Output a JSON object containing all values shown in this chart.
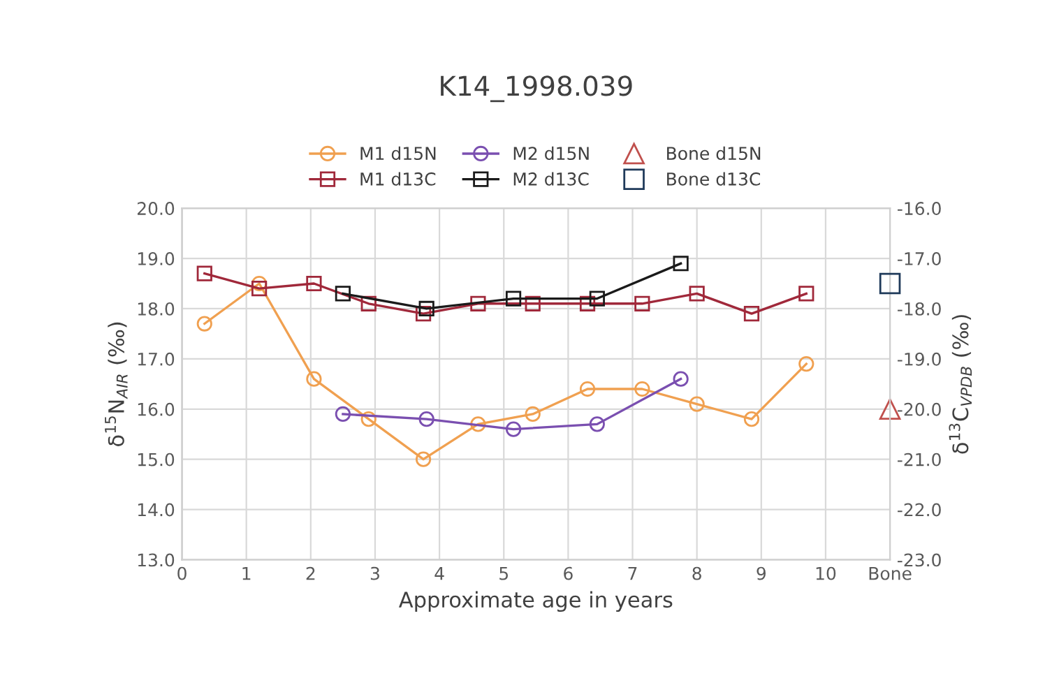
{
  "chart_data": {
    "type": "line",
    "title": "K14_1998.039",
    "xlabel": "Approximate age in years",
    "ylabel": "δ$^{15}$N$_{AIR}$ (‰)",
    "y2label": "δ$^{13}$C$_{VPDB}$ (‰)",
    "xlim": [
      0,
      11
    ],
    "xticks": [
      0,
      1,
      2,
      3,
      4,
      5,
      6,
      7,
      8,
      9,
      10,
      {
        "value": 11,
        "label": "Bone"
      }
    ],
    "ylim": [
      13,
      20
    ],
    "yticks": [
      {
        "value": 13,
        "label": "13.0"
      },
      {
        "value": 14,
        "label": "14.0"
      },
      {
        "value": 15,
        "label": "15.0"
      },
      {
        "value": 16,
        "label": "16.0"
      },
      {
        "value": 17,
        "label": "17.0"
      },
      {
        "value": 18,
        "label": "18.0"
      },
      {
        "value": 19,
        "label": "19.0"
      },
      {
        "value": 20,
        "label": "20.0"
      }
    ],
    "y2lim": [
      -23,
      -16
    ],
    "y2ticks": [
      {
        "value": -23,
        "label": "-23.0"
      },
      {
        "value": -22,
        "label": "-22.0"
      },
      {
        "value": -21,
        "label": "-21.0"
      },
      {
        "value": -20,
        "label": "-20.0"
      },
      {
        "value": -19,
        "label": "-19.0"
      },
      {
        "value": -18,
        "label": "-18.0"
      },
      {
        "value": -17,
        "label": "-17.0"
      },
      {
        "value": -16,
        "label": "-16.0"
      }
    ],
    "grid": true,
    "legend": "top",
    "series": [
      {
        "name": "M1 d15N",
        "marker": "circle",
        "color": "#f0a050",
        "x": [
          0.35,
          1.2,
          2.05,
          2.9,
          3.75,
          4.6,
          5.45,
          6.3,
          7.15,
          8.0,
          8.85,
          9.7
        ],
        "values": [
          17.7,
          18.5,
          16.6,
          15.8,
          15.0,
          15.7,
          15.9,
          16.4,
          16.4,
          16.1,
          15.8,
          16.9
        ]
      },
      {
        "name": "M2 d15N",
        "marker": "circle",
        "color": "#7a4fb0",
        "x": [
          2.5,
          3.8,
          5.15,
          6.45,
          7.75
        ],
        "values": [
          15.9,
          15.8,
          15.6,
          15.7,
          16.6
        ]
      },
      {
        "name": "Bone d15N",
        "type": "scatter",
        "marker": "triangle",
        "color": "#c0504d",
        "x": [
          11
        ],
        "values": [
          16.0
        ]
      },
      {
        "name": "M1 d13C",
        "marker": "square",
        "axis": "y2",
        "color": "#a0283a",
        "x": [
          0.35,
          1.2,
          2.05,
          2.9,
          3.75,
          4.6,
          5.45,
          6.3,
          7.15,
          8.0,
          8.85,
          9.7
        ],
        "values": [
          -17.3,
          -17.6,
          -17.5,
          -17.9,
          -18.1,
          -17.9,
          -17.9,
          -17.9,
          -17.9,
          -17.7,
          -18.1,
          -17.7
        ]
      },
      {
        "name": "M2 d13C",
        "marker": "square",
        "axis": "y2",
        "color": "#1a1a1a",
        "x": [
          2.5,
          3.8,
          5.15,
          6.45,
          7.75
        ],
        "values": [
          -17.7,
          -18.0,
          -17.8,
          -17.8,
          -17.1
        ]
      },
      {
        "name": "Bone d13C",
        "type": "scatter",
        "marker": "square",
        "axis": "y2",
        "color": "#1f3a5a",
        "x": [
          11
        ],
        "values": [
          -17.5
        ]
      }
    ]
  }
}
